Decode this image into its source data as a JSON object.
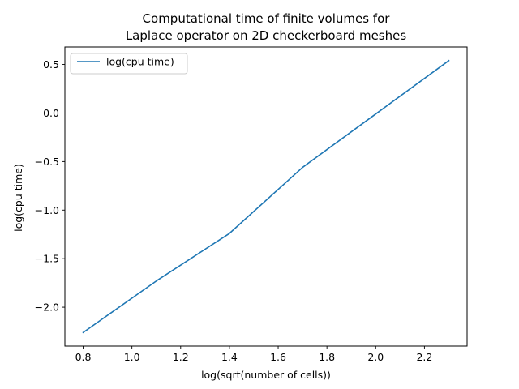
{
  "chart_data": {
    "type": "line",
    "title_lines": [
      "Computational time of finite volumes for",
      "Laplace operator on 2D checkerboard meshes"
    ],
    "xlabel": "log(sqrt(number of cells))",
    "ylabel": "log(cpu time)",
    "xlim": [
      0.725,
      2.375
    ],
    "ylim": [
      -2.4,
      0.68
    ],
    "xticks": [
      0.8,
      1.0,
      1.2,
      1.4,
      1.6,
      1.8,
      2.0,
      2.2
    ],
    "xtick_labels": [
      "0.8",
      "1.0",
      "1.2",
      "1.4",
      "1.6",
      "1.8",
      "2.0",
      "2.2"
    ],
    "yticks": [
      0.5,
      0.0,
      -0.5,
      -1.0,
      -1.5,
      -2.0
    ],
    "ytick_labels": [
      "0.5",
      "0.0",
      "−0.5",
      "−1.0",
      "−1.5",
      "−2.0"
    ],
    "grid": false,
    "legend_position": "upper-left",
    "series": [
      {
        "name": "log(cpu time)",
        "color": "#1f77b4",
        "x": [
          0.8,
          1.1,
          1.4,
          1.7,
          2.0,
          2.3
        ],
        "y": [
          -2.26,
          -1.73,
          -1.24,
          -0.56,
          -0.01,
          0.54
        ]
      }
    ]
  }
}
